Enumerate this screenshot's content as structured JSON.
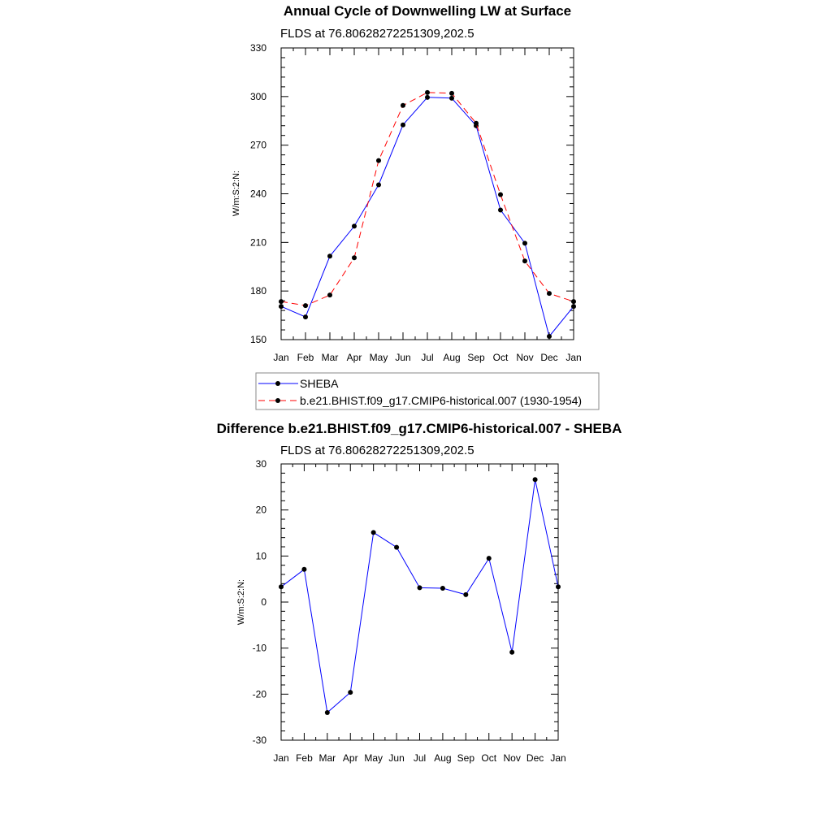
{
  "chart_data": [
    {
      "type": "line",
      "title": "Annual Cycle of Downwelling LW at Surface",
      "subtitle": "FLDS at 76.80628272251309,202.5",
      "ylabel": "W/m:S:2:N:",
      "xlabel": "",
      "categories": [
        "Jan",
        "Feb",
        "Mar",
        "Apr",
        "May",
        "Jun",
        "Jul",
        "Aug",
        "Sep",
        "Oct",
        "Nov",
        "Dec",
        "Jan"
      ],
      "ylim": [
        150,
        330
      ],
      "yticks": [
        150,
        180,
        210,
        240,
        270,
        300,
        330
      ],
      "legend_position": "bottom",
      "series": [
        {
          "name": "SHEBA",
          "color": "#0000ff",
          "dash": "solid",
          "values": [
            170.5,
            164,
            201.5,
            220,
            245.5,
            282.5,
            299.5,
            299,
            282,
            230,
            209.5,
            152,
            170.5
          ]
        },
        {
          "name": "b.e21.BHIST.f09_g17.CMIP6-historical.007 (1930-1954)",
          "color": "#ff0000",
          "dash": "dashed",
          "values": [
            173.5,
            171,
            177.5,
            200.5,
            260.5,
            294.5,
            302.5,
            302,
            283.5,
            239.5,
            198.5,
            178.5,
            173.5
          ]
        }
      ]
    },
    {
      "type": "line",
      "title": "Difference b.e21.BHIST.f09_g17.CMIP6-historical.007 - SHEBA",
      "subtitle": "FLDS at 76.80628272251309,202.5",
      "ylabel": "W/m:S:2:N:",
      "xlabel": "",
      "categories": [
        "Jan",
        "Feb",
        "Mar",
        "Apr",
        "May",
        "Jun",
        "Jul",
        "Aug",
        "Sep",
        "Oct",
        "Nov",
        "Dec",
        "Jan"
      ],
      "ylim": [
        -30,
        30
      ],
      "yticks": [
        -30,
        -20,
        -10,
        0,
        10,
        20,
        30
      ],
      "series": [
        {
          "color": "#0000ff",
          "dash": "solid",
          "values": [
            3.3,
            7.1,
            -24,
            -19.6,
            15.1,
            11.9,
            3.1,
            3.0,
            1.6,
            9.5,
            -10.9,
            26.6,
            3.3
          ]
        }
      ]
    }
  ]
}
